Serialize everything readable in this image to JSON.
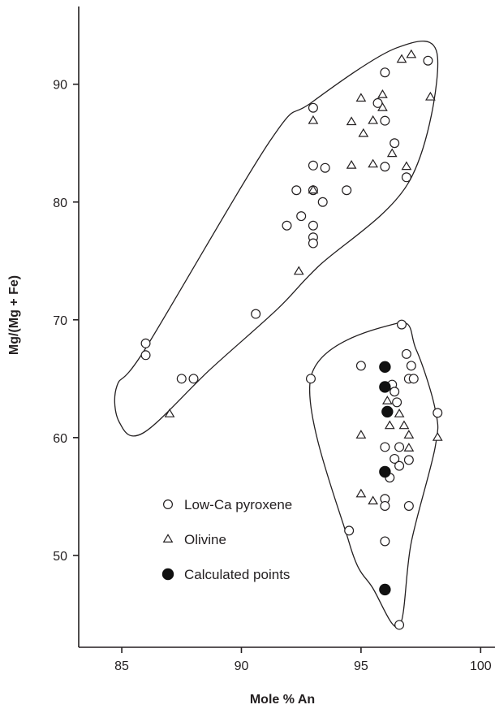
{
  "chart_data": {
    "type": "scatter",
    "title": "",
    "xlabel": "Mole % An",
    "ylabel": "Mg/(Mg + Fe)",
    "xlim": [
      83.2,
      100.6
    ],
    "ylim": [
      42.2,
      96.6
    ],
    "xticks": [
      85,
      90,
      95,
      100
    ],
    "yticks": [
      50,
      60,
      70,
      80,
      90
    ],
    "grid": false,
    "legend_placement": "bottom-left",
    "series": [
      {
        "name": "Low-Ca pyroxene",
        "marker": "open-circle",
        "points": [
          [
            93,
            88
          ],
          [
            96,
            91
          ],
          [
            97.8,
            92
          ],
          [
            95.7,
            88.4
          ],
          [
            96,
            86.9
          ],
          [
            96.4,
            85
          ],
          [
            93,
            83.1
          ],
          [
            93.5,
            82.9
          ],
          [
            96,
            83
          ],
          [
            96.9,
            82.1
          ],
          [
            92.3,
            81
          ],
          [
            93,
            81
          ],
          [
            94.4,
            81
          ],
          [
            93.4,
            80
          ],
          [
            92.5,
            78.8
          ],
          [
            91.9,
            78
          ],
          [
            93,
            78
          ],
          [
            93,
            77
          ],
          [
            93,
            76.5
          ],
          [
            90.6,
            70.5
          ],
          [
            86,
            68
          ],
          [
            86,
            67
          ],
          [
            87.5,
            65
          ],
          [
            88,
            65
          ],
          [
            96.7,
            69.6
          ],
          [
            96.9,
            67.1
          ],
          [
            95,
            66.1
          ],
          [
            97.1,
            66.1
          ],
          [
            96.3,
            64.5
          ],
          [
            96.4,
            63.9
          ],
          [
            97,
            65
          ],
          [
            97.2,
            65
          ],
          [
            92.9,
            65
          ],
          [
            96.5,
            63
          ],
          [
            96,
            59.2
          ],
          [
            96.6,
            59.2
          ],
          [
            96.4,
            58.2
          ],
          [
            96.6,
            57.6
          ],
          [
            97,
            58.1
          ],
          [
            96.2,
            56.6
          ],
          [
            96,
            54.8
          ],
          [
            96,
            54.2
          ],
          [
            97,
            54.2
          ],
          [
            98.2,
            62.1
          ],
          [
            94.5,
            52.1
          ],
          [
            96,
            51.2
          ],
          [
            96.6,
            44.1
          ]
        ]
      },
      {
        "name": "Olivine",
        "marker": "open-triangle",
        "points": [
          [
            97.1,
            92.5
          ],
          [
            96.7,
            92.1
          ],
          [
            95,
            88.8
          ],
          [
            95.9,
            89.1
          ],
          [
            95.9,
            88
          ],
          [
            97.9,
            88.9
          ],
          [
            93,
            86.9
          ],
          [
            94.6,
            86.8
          ],
          [
            95.5,
            86.9
          ],
          [
            95.1,
            85.8
          ],
          [
            96.3,
            84.1
          ],
          [
            94.6,
            83.1
          ],
          [
            95.5,
            83.2
          ],
          [
            96.9,
            83
          ],
          [
            93,
            81
          ],
          [
            92.4,
            74.1
          ],
          [
            87,
            62
          ],
          [
            96.1,
            63.1
          ],
          [
            96.6,
            62
          ],
          [
            96.2,
            61
          ],
          [
            96.8,
            61
          ],
          [
            95,
            60.2
          ],
          [
            97,
            60.2
          ],
          [
            98.2,
            60
          ],
          [
            97,
            59.1
          ],
          [
            95,
            55.2
          ],
          [
            95.5,
            54.6
          ]
        ]
      },
      {
        "name": "Calculated points",
        "marker": "filled-circle",
        "points": [
          [
            96,
            66
          ],
          [
            96,
            64.3
          ],
          [
            96.1,
            62.2
          ],
          [
            96,
            57.1
          ],
          [
            96,
            47.1
          ]
        ]
      }
    ],
    "fields": [
      {
        "name": "upper",
        "path": [
          [
            86.0,
            67.6
          ],
          [
            91.2,
            85.2
          ],
          [
            92.9,
            88.4
          ],
          [
            96.5,
            93.1
          ],
          [
            98.2,
            92.3
          ],
          [
            97.0,
            81.7
          ],
          [
            93.2,
            74.5
          ],
          [
            91.5,
            70.9
          ],
          [
            88.7,
            65.8
          ],
          [
            85.9,
            60.4
          ],
          [
            84.9,
            61.3
          ],
          [
            84.8,
            64.4
          ]
        ]
      },
      {
        "name": "lower",
        "path": [
          [
            92.9,
            65.1
          ],
          [
            96.5,
            69.7
          ],
          [
            97.3,
            67.5
          ],
          [
            98.1,
            62.4
          ],
          [
            98.1,
            59.2
          ],
          [
            97.1,
            51.1
          ],
          [
            96.6,
            44.0
          ],
          [
            95.5,
            47.2
          ],
          [
            94.5,
            51.1
          ]
        ]
      }
    ]
  }
}
